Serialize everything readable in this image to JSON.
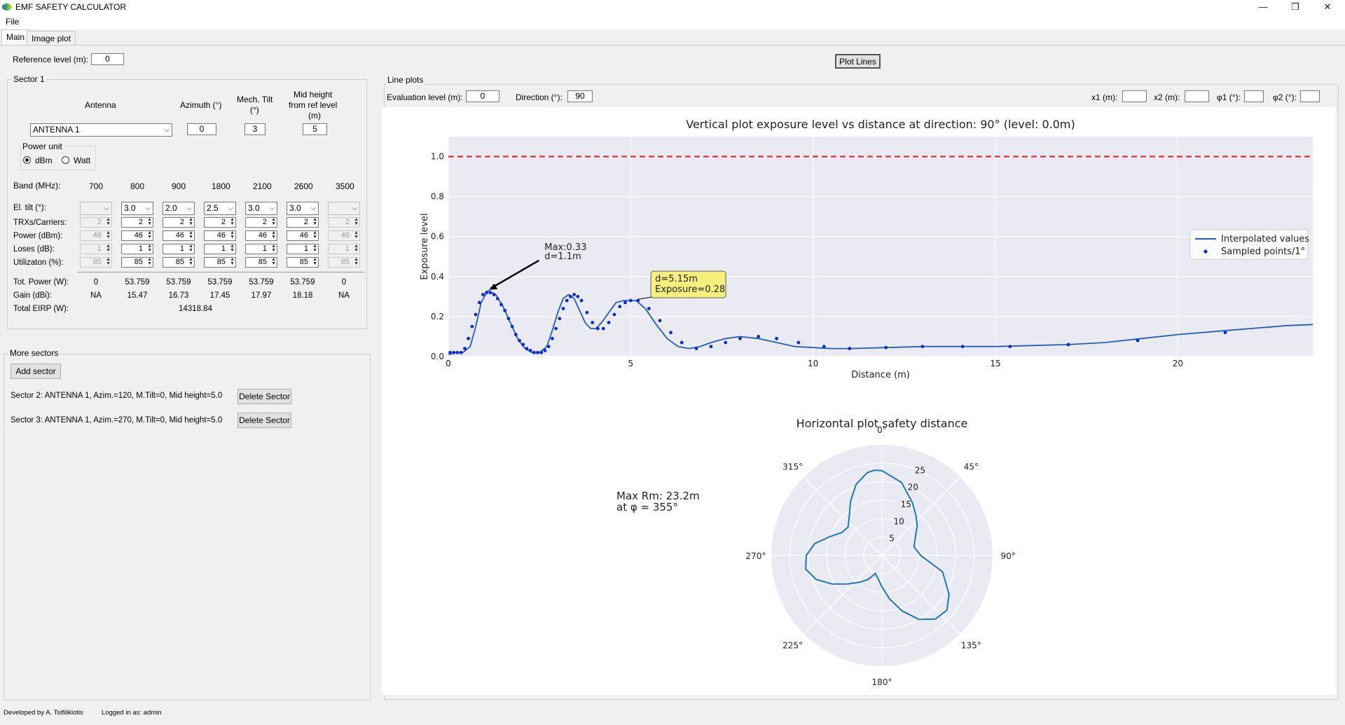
{
  "window": {
    "title": "EMF SAFETY CALCULATOR",
    "min": "—",
    "restore": "❐",
    "close": "✕"
  },
  "menu": {
    "file": "File"
  },
  "tabs": [
    {
      "label": "Main"
    },
    {
      "label": "Image plot"
    }
  ],
  "reference": {
    "label": "Reference level (m):",
    "value": "0"
  },
  "plot_lines_button": "Plot Lines",
  "sector1": {
    "title": "Sector 1",
    "antenna_header": "Antenna",
    "azimuth_header": "Azimuth (°)",
    "mech_tilt_header_1": "Mech. Tilt",
    "mech_tilt_header_2": "(°)",
    "mid_height_header_1": "Mid height",
    "mid_height_header_2": "from ref level",
    "mid_height_header_3": "(m)",
    "antenna_value": "ANTENNA 1",
    "azimuth_value": "0",
    "mech_tilt_value": "3",
    "mid_height_value": "5",
    "power_unit_title": "Power unit",
    "unit_dbm": "dBm",
    "unit_watt": "Watt",
    "band_label": "Band (MHz):",
    "bands": [
      "700",
      "800",
      "900",
      "1800",
      "2100",
      "2600",
      "3500"
    ],
    "row_labels": {
      "el_tilt": "El. tilt (°):",
      "trx": "TRXs/Carriers:",
      "power": "Power (dBm):",
      "loses": "Loses (dB):",
      "util": "Utilizaton (%):",
      "tot_power": "Tot. Power (W):",
      "gain": "Gain (dBi):",
      "eirp": "Total EIRP (W):"
    },
    "el_tilt": [
      "",
      "3.0",
      "2.0",
      "2.5",
      "3.0",
      "3.0",
      ""
    ],
    "trx": [
      "2",
      "2",
      "2",
      "2",
      "2",
      "2",
      "2"
    ],
    "power": [
      "46",
      "46",
      "46",
      "46",
      "46",
      "46",
      "46"
    ],
    "loses": [
      "1",
      "1",
      "1",
      "1",
      "1",
      "1",
      "1"
    ],
    "util": [
      "85",
      "85",
      "85",
      "85",
      "85",
      "85",
      "85"
    ],
    "tot_power": [
      "0",
      "53.759",
      "53.759",
      "53.759",
      "53.759",
      "53.759",
      "0"
    ],
    "gain": [
      "NA",
      "15.47",
      "16.73",
      "17.45",
      "17.97",
      "18.18",
      "NA"
    ],
    "eirp": "14318.84"
  },
  "more_sectors": {
    "title": "More sectors",
    "add_button": "Add sector",
    "delete_button": "Delete Sector",
    "items": [
      "Sector 2: ANTENNA 1, Azim.=120, M.Tilt=0, Mid height=5.0",
      "Sector 3: ANTENNA 1, Azim.=270, M.Tilt=0, Mid height=5.0"
    ]
  },
  "line_plots": {
    "title": "Line plots",
    "eval_label": "Evaluation level (m):",
    "eval_value": "0",
    "dir_label": "Direction (°):",
    "dir_value": "90",
    "x1_label": "x1 (m):",
    "x2_label": "x2 (m):",
    "phi1_label": "φ1 (°):",
    "phi2_label": "φ2 (°):",
    "x1_value": "",
    "x2_value": "",
    "phi1_value": "",
    "phi2_value": ""
  },
  "footer": {
    "developer": "Developed by A. Tsifilikiotis",
    "login": "Logged in as: admin"
  },
  "chart_data": [
    {
      "type": "line",
      "title": "Vertical plot exposure level vs distance at direction: 90° (level: 0.0m)",
      "xlabel": "Distance (m)",
      "ylabel": "Exposure level",
      "xlim": [
        0,
        23.7
      ],
      "ylim": [
        0,
        1.1
      ],
      "xticks": [
        "0",
        "5",
        "10",
        "15",
        "20"
      ],
      "yticks": [
        "0.0",
        "0.2",
        "0.4",
        "0.6",
        "0.8",
        "1.0"
      ],
      "grid": true,
      "legend_position": "center-right",
      "limit_line": {
        "y": 1.0,
        "color": "#e8191e"
      },
      "series": [
        {
          "name": "Interpolated values",
          "color": "#1f5fbf",
          "x": [
            0,
            0.2,
            0.4,
            0.6,
            0.75,
            0.9,
            1.05,
            1.1,
            1.3,
            1.5,
            1.7,
            1.9,
            2.1,
            2.3,
            2.5,
            2.7,
            2.85,
            3.0,
            3.15,
            3.3,
            3.45,
            3.6,
            3.75,
            3.9,
            4.05,
            4.2,
            4.4,
            4.6,
            4.8,
            5.0,
            5.15,
            5.4,
            5.7,
            6.0,
            6.3,
            6.6,
            6.9,
            7.2,
            7.6,
            8.0,
            8.5,
            9.0,
            9.5,
            10.0,
            10.5,
            11.0,
            12.0,
            13.0,
            14.0,
            15.0,
            16.0,
            17.0,
            18.0,
            19.0,
            20.0,
            21.0,
            22.0,
            23.0,
            23.7
          ],
          "y": [
            0.01,
            0.02,
            0.02,
            0.05,
            0.15,
            0.27,
            0.32,
            0.33,
            0.31,
            0.25,
            0.17,
            0.09,
            0.04,
            0.02,
            0.02,
            0.05,
            0.13,
            0.22,
            0.29,
            0.31,
            0.29,
            0.23,
            0.17,
            0.14,
            0.14,
            0.17,
            0.22,
            0.27,
            0.28,
            0.28,
            0.28,
            0.24,
            0.16,
            0.09,
            0.05,
            0.04,
            0.05,
            0.07,
            0.09,
            0.1,
            0.09,
            0.07,
            0.05,
            0.045,
            0.04,
            0.04,
            0.045,
            0.05,
            0.05,
            0.05,
            0.055,
            0.06,
            0.07,
            0.09,
            0.11,
            0.125,
            0.14,
            0.155,
            0.16
          ]
        },
        {
          "name": "Sampled points/1°",
          "color": "#0a2bd6",
          "x": [
            0.05,
            0.15,
            0.25,
            0.35,
            0.45,
            0.55,
            0.65,
            0.75,
            0.85,
            0.95,
            1.05,
            1.15,
            1.25,
            1.35,
            1.45,
            1.55,
            1.65,
            1.75,
            1.85,
            1.95,
            2.05,
            2.15,
            2.25,
            2.35,
            2.45,
            2.55,
            2.65,
            2.75,
            2.85,
            2.95,
            3.05,
            3.15,
            3.25,
            3.35,
            3.45,
            3.55,
            3.65,
            3.8,
            3.95,
            4.1,
            4.25,
            4.4,
            4.55,
            4.7,
            4.85,
            5.0,
            5.2,
            5.5,
            5.8,
            6.1,
            6.4,
            6.8,
            7.2,
            7.6,
            8.0,
            8.5,
            9.0,
            9.6,
            10.3,
            11.0,
            12.0,
            13.0,
            14.1,
            15.4,
            17.0,
            18.9,
            21.3
          ],
          "y": [
            0.02,
            0.02,
            0.02,
            0.02,
            0.04,
            0.09,
            0.15,
            0.21,
            0.27,
            0.31,
            0.32,
            0.32,
            0.31,
            0.29,
            0.26,
            0.23,
            0.19,
            0.15,
            0.11,
            0.08,
            0.06,
            0.04,
            0.03,
            0.02,
            0.02,
            0.02,
            0.03,
            0.05,
            0.09,
            0.14,
            0.19,
            0.24,
            0.28,
            0.3,
            0.31,
            0.3,
            0.28,
            0.22,
            0.17,
            0.14,
            0.14,
            0.17,
            0.21,
            0.25,
            0.27,
            0.28,
            0.28,
            0.24,
            0.18,
            0.12,
            0.07,
            0.04,
            0.05,
            0.07,
            0.09,
            0.1,
            0.09,
            0.07,
            0.05,
            0.04,
            0.045,
            0.05,
            0.05,
            0.05,
            0.06,
            0.08,
            0.12
          ]
        }
      ],
      "annotations": [
        {
          "text_1": "Max:0.33",
          "text_2": "d=1.1m",
          "x": 1.1,
          "y": 0.33
        },
        {
          "text_1": "d=5.15m",
          "text_2": "Exposure=0.28",
          "x": 5.15,
          "y": 0.28
        }
      ]
    },
    {
      "type": "polar",
      "title": "Horizontal plot safety distance",
      "rmax": 30,
      "rticks": [
        "5",
        "10",
        "15",
        "20",
        "25"
      ],
      "angle_ticks": [
        "0°",
        "45°",
        "90°",
        "135°",
        "180°",
        "225°",
        "270°",
        "315°"
      ],
      "side_text_1": "Max Rm: 23.2m",
      "side_text_2": "at φ = 355°",
      "series": [
        {
          "name": "",
          "color": "#1f77b4",
          "theta": [
            0,
            15,
            30,
            40,
            50,
            60,
            75,
            90,
            105,
            120,
            130,
            140,
            150,
            160,
            170,
            180,
            190,
            200,
            210,
            220,
            230,
            240,
            250,
            260,
            270,
            280,
            290,
            300,
            310,
            320,
            330,
            340,
            350,
            355,
            360
          ],
          "r": [
            23.0,
            20.5,
            16.5,
            14.3,
            12.5,
            10.5,
            9.0,
            10.5,
            17.0,
            21.0,
            23.0,
            22.5,
            20.0,
            16.0,
            12.0,
            8.5,
            6.3,
            5.2,
            7.5,
            9.5,
            12.0,
            15.5,
            19.0,
            21.0,
            20.5,
            18.5,
            15.0,
            12.5,
            12.0,
            13.8,
            17.0,
            20.5,
            22.8,
            23.2,
            23.0
          ]
        }
      ]
    }
  ]
}
